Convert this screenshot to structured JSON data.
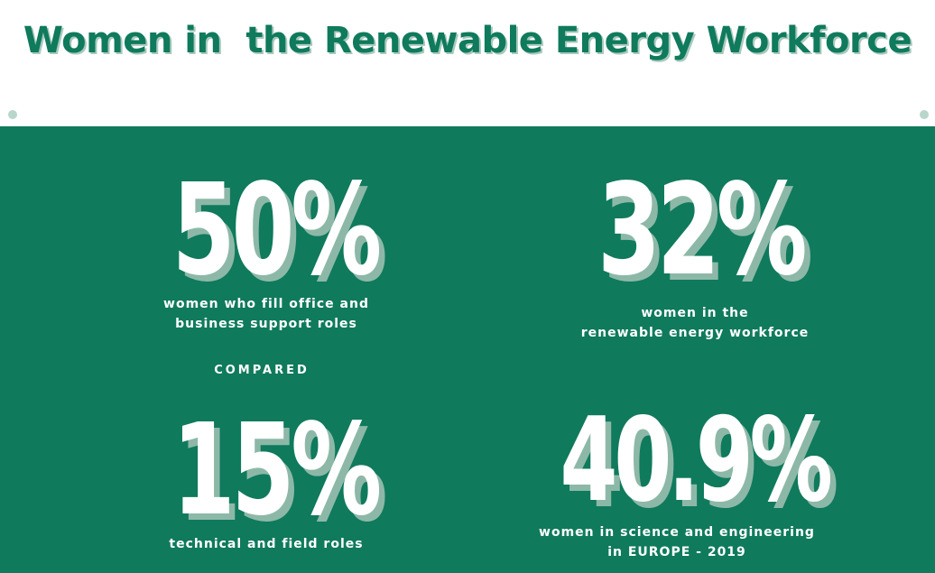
{
  "header": {
    "title": "Women in  the Renewable Energy Workforce"
  },
  "colors": {
    "primary_green": "#0f7a5c",
    "shadow_green": "#8db8a8",
    "text_white": "#ffffff"
  },
  "stats": [
    {
      "value": "50%",
      "description_lines": [
        "women who fill office and",
        "business support roles"
      ]
    },
    {
      "value": "32%",
      "description_lines": [
        "women in the",
        "renewable energy workforce"
      ]
    },
    {
      "value": "15%",
      "description_lines": [
        "technical and field roles"
      ]
    },
    {
      "value": "40.9%",
      "description_lines": [
        "women in science and engineering",
        "in EUROPE - 2019"
      ]
    }
  ],
  "compared_label": "COMPARED"
}
